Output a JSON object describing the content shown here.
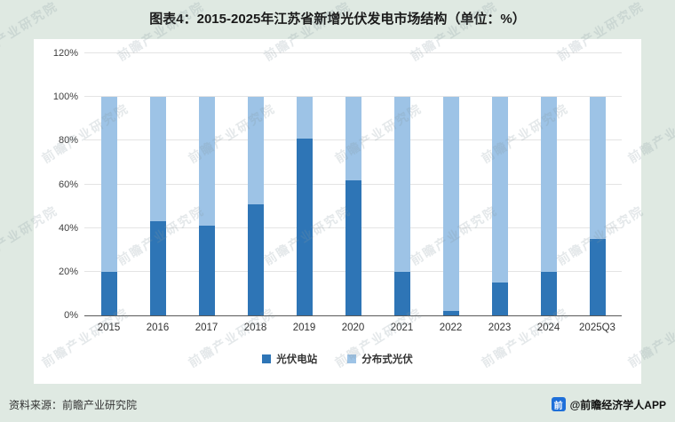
{
  "title": "图表4：2015-2025年江苏省新增光伏发电市场结构（单位：%）",
  "chart_data": {
    "type": "bar",
    "stacked": true,
    "title": "图表4：2015-2025年江苏省新增光伏发电市场结构（单位：%）",
    "categories": [
      "2015",
      "2016",
      "2017",
      "2018",
      "2019",
      "2020",
      "2021",
      "2022",
      "2023",
      "2024",
      "2025Q3"
    ],
    "series": [
      {
        "name": "光伏电站",
        "color": "#2e75b6",
        "values": [
          20,
          43,
          41,
          51,
          81,
          62,
          20,
          2,
          15,
          20,
          35
        ]
      },
      {
        "name": "分布式光伏",
        "color": "#9dc3e6",
        "values": [
          80,
          57,
          59,
          49,
          19,
          38,
          80,
          98,
          85,
          80,
          65
        ]
      }
    ],
    "xlabel": "",
    "ylabel": "",
    "ylim": [
      0,
      120
    ],
    "ytick_step": 20,
    "yticks": [
      "0%",
      "20%",
      "40%",
      "60%",
      "80%",
      "100%",
      "120%"
    ],
    "grid": true,
    "legend_position": "bottom"
  },
  "footer": {
    "source": "资料来源：前瞻产业研究院",
    "brand": "@前瞻经济学人APP",
    "brand_logo_glyph": "前"
  },
  "watermark": {
    "text": "前瞻产业研究院"
  },
  "colors": {
    "background": "#dfe9e2",
    "plot_background": "#ffffff",
    "series_dark": "#2e75b6",
    "series_light": "#9dc3e6",
    "axis": "#595959",
    "gridline": "#e4e4e4"
  }
}
